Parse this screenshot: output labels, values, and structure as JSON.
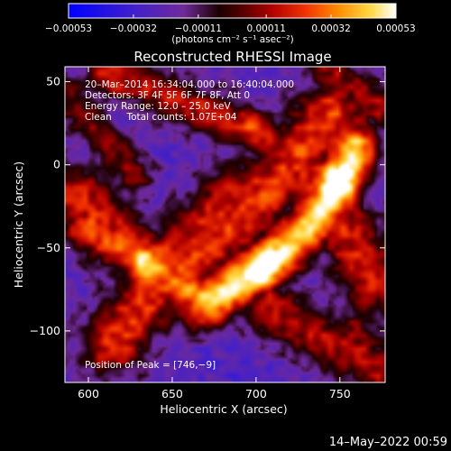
{
  "chart_data": {
    "type": "heatmap",
    "title": "Reconstructed RHESSI Image",
    "xlabel": "Heliocentric X (arcsec)",
    "ylabel": "Heliocentric Y (arcsec)",
    "xlim": [
      586,
      777
    ],
    "ylim": [
      -131,
      59
    ],
    "x_ticks": [
      600,
      650,
      700,
      750
    ],
    "y_ticks": [
      50,
      0,
      -50,
      -100
    ],
    "x_tick_labels": [
      "600",
      "650",
      "700",
      "750"
    ],
    "y_tick_labels": [
      "50",
      "0",
      "−50",
      "−100"
    ],
    "colorbar": {
      "min": -0.00053,
      "max": 0.00053,
      "tick_values": [
        -0.00053,
        -0.00032,
        -0.00011,
        0.00011,
        0.00032,
        0.00053
      ],
      "tick_labels": [
        "−0.00053",
        "−0.00032",
        "−0.00011",
        "0.00011",
        "0.00032",
        "0.00053"
      ],
      "units_label": "(photons cm⁻² s⁻¹ asec⁻²)"
    },
    "annotations": [
      "20–Mar–2014 16:34:04.000 to 16:40:04.000",
      "Detectors: 3F 4F 5F 6F 7F 8F, Att 0",
      "Energy Range: 12.0 – 25.0 keV",
      "Clean     Total counts: 1.07E+04",
      "Position of Peak = [746,−9]"
    ],
    "peak": [
      746,
      -9
    ],
    "emission_ridges": [
      {
        "x": [
          592,
          604,
          618,
          632,
          646,
          662,
          676,
          688,
          700,
          712,
          724,
          736,
          748,
          760,
          772
        ],
        "y": [
          -18,
          -30,
          -44,
          -56,
          -60,
          -46,
          -30,
          -20,
          -14,
          -10,
          -8,
          -12,
          -30,
          -52,
          -70
        ],
        "width": 15,
        "strength": 0.55
      },
      {
        "x": [
          614,
          628,
          640,
          652,
          664,
          676,
          690,
          704,
          716,
          728,
          738,
          746,
          752,
          756
        ],
        "y": [
          -108,
          -90,
          -76,
          -63,
          -56,
          -45,
          -33,
          -20,
          -5,
          10,
          25,
          32,
          20,
          0
        ],
        "width": 14,
        "strength": 0.6
      },
      {
        "x": [
          672,
          684,
          696,
          708,
          720,
          732,
          742,
          750,
          756,
          758
        ],
        "y": [
          -82,
          -74,
          -66,
          -58,
          -48,
          -36,
          -24,
          -12,
          0,
          10
        ],
        "width": 11,
        "strength": 0.9
      },
      {
        "x": [
          600,
          614,
          628,
          640,
          650,
          658,
          668
        ],
        "y": [
          -38,
          -46,
          -54,
          -62,
          -70,
          -76,
          -80
        ],
        "width": 11,
        "strength": 0.65
      },
      {
        "x": [
          612,
          628,
          644,
          660,
          676,
          692,
          706
        ],
        "y": [
          58,
          50,
          42,
          36,
          30,
          22,
          14
        ],
        "width": 10,
        "strength": 0.5
      },
      {
        "x": [
          706,
          726,
          744,
          760,
          774
        ],
        "y": [
          -86,
          -96,
          -108,
          -116,
          -122
        ],
        "width": 12,
        "strength": 0.5
      },
      {
        "x": [
          740,
          752,
          764,
          774
        ],
        "y": [
          58,
          50,
          44,
          34
        ],
        "width": 9,
        "strength": 0.45
      },
      {
        "x": [
          588,
          596,
          604,
          612,
          620,
          628
        ],
        "y": [
          40,
          30,
          22,
          14,
          2,
          -8
        ],
        "width": 9,
        "strength": 0.4
      }
    ],
    "emission_blobs": [
      {
        "x": 746,
        "y": -9,
        "sigma": 7,
        "strength": 0.35
      },
      {
        "x": 703,
        "y": -64,
        "sigma": 8,
        "strength": 0.3
      },
      {
        "x": 636,
        "y": -60,
        "sigma": 7,
        "strength": 0.3
      },
      {
        "x": 660,
        "y": -70,
        "sigma": 6,
        "strength": 0.15
      },
      {
        "x": 612,
        "y": 48,
        "sigma": 6,
        "strength": 0.2
      },
      {
        "x": 760,
        "y": -96,
        "sigma": 6,
        "strength": 0.2
      },
      {
        "x": 700,
        "y": 26,
        "sigma": 6,
        "strength": 0.2
      },
      {
        "x": 658,
        "y": -98,
        "sigma": 6,
        "strength": 0.15
      }
    ]
  },
  "footer": {
    "timestamp": "14–May–2022 00:59"
  }
}
